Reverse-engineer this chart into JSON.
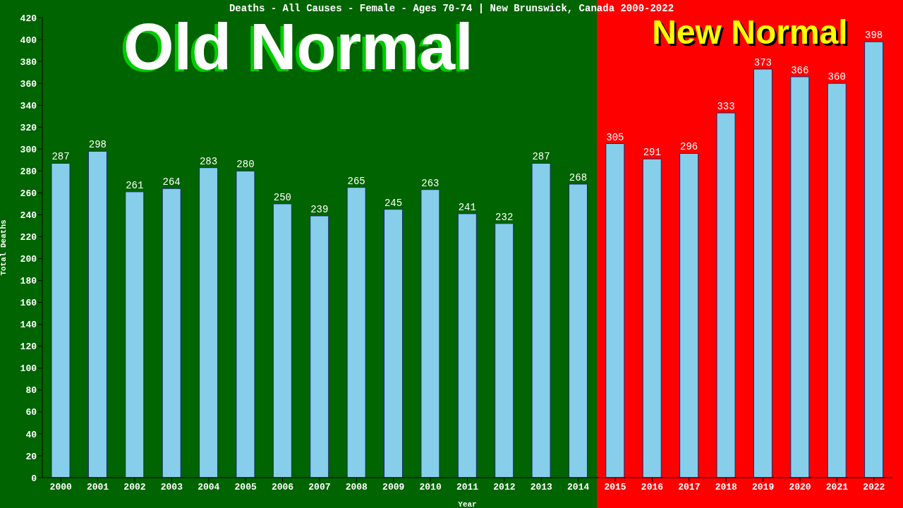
{
  "chart_data": {
    "type": "bar",
    "title": "Deaths - All Causes - Female - Ages 70-74 | New Brunswick, Canada 2000-2022",
    "xlabel": "Year",
    "ylabel": "Total Deaths",
    "categories": [
      "2000",
      "2001",
      "2002",
      "2003",
      "2004",
      "2005",
      "2006",
      "2007",
      "2008",
      "2009",
      "2010",
      "2011",
      "2012",
      "2013",
      "2014",
      "2015",
      "2016",
      "2017",
      "2018",
      "2019",
      "2020",
      "2021",
      "2022"
    ],
    "values": [
      287,
      298,
      261,
      264,
      283,
      280,
      250,
      239,
      265,
      245,
      263,
      241,
      232,
      287,
      268,
      305,
      291,
      296,
      333,
      373,
      366,
      360,
      398
    ],
    "color": "#87ceeb",
    "ylim": [
      0,
      420
    ],
    "yticks": [
      0,
      20,
      40,
      60,
      80,
      100,
      120,
      140,
      160,
      180,
      200,
      220,
      240,
      260,
      280,
      300,
      320,
      340,
      360,
      380,
      400,
      420
    ],
    "grid": false,
    "data_labels": true,
    "legend": false,
    "bands": [
      {
        "axis": "x",
        "from": "2000",
        "to": "2014",
        "label": "Old Normal",
        "color": "#006400"
      },
      {
        "axis": "x",
        "from": "2015",
        "to": "2022",
        "label": "New Normal",
        "color": "#ff0000"
      }
    ]
  }
}
